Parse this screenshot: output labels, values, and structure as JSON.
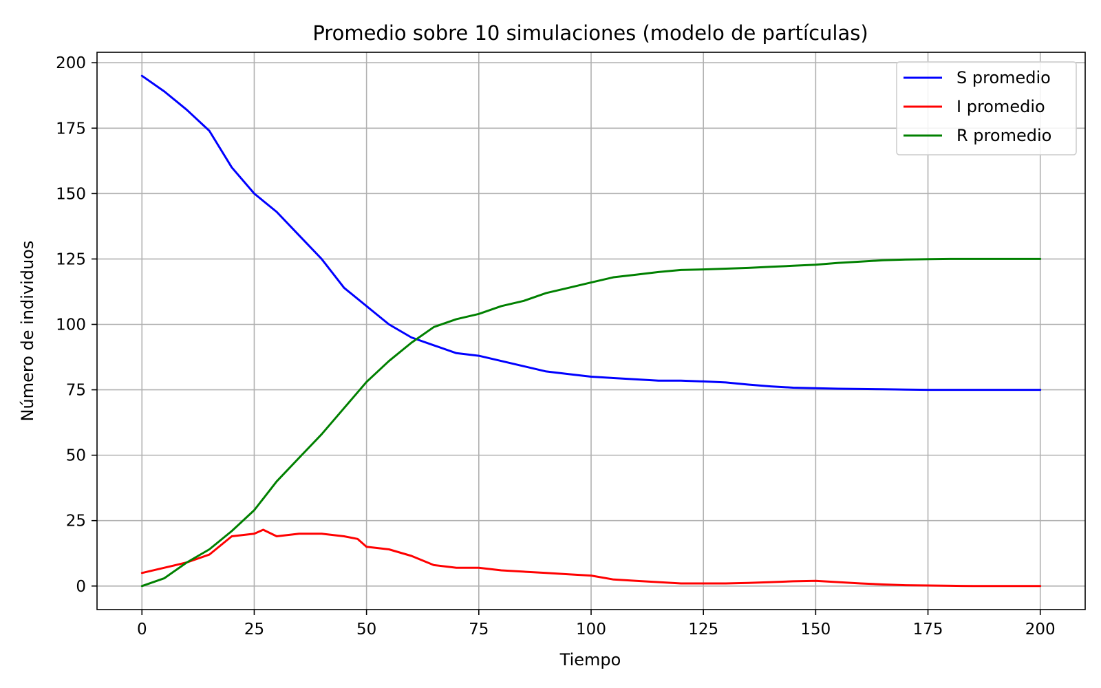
{
  "chart_data": {
    "type": "line",
    "title": "Promedio sobre 10 simulaciones (modelo de partículas)",
    "xlabel": "Tiempo",
    "ylabel": "Número de individuos",
    "xlim": [
      -10,
      210
    ],
    "ylim": [
      -9,
      204
    ],
    "x_ticks": [
      0,
      25,
      50,
      75,
      100,
      125,
      150,
      175,
      200
    ],
    "y_ticks": [
      0,
      25,
      50,
      75,
      100,
      125,
      150,
      175,
      200
    ],
    "grid": true,
    "legend_position": "top-right",
    "series": [
      {
        "name": "S promedio",
        "color": "#0000ff",
        "x": [
          0,
          5,
          10,
          15,
          20,
          25,
          30,
          35,
          40,
          45,
          50,
          55,
          60,
          65,
          70,
          75,
          80,
          85,
          90,
          95,
          100,
          105,
          110,
          115,
          120,
          125,
          130,
          135,
          140,
          145,
          150,
          155,
          160,
          165,
          170,
          175,
          180,
          185,
          190,
          195,
          200
        ],
        "values": [
          195,
          189,
          182,
          174,
          160,
          150,
          143,
          134,
          125,
          114,
          107,
          100,
          95,
          92,
          89,
          88,
          86,
          84,
          82,
          81,
          80,
          79.5,
          79,
          78.5,
          78.5,
          78.2,
          77.8,
          77,
          76.3,
          75.8,
          75.6,
          75.4,
          75.3,
          75.2,
          75.1,
          75,
          75,
          75,
          75,
          75,
          75
        ]
      },
      {
        "name": "I promedio",
        "color": "#ff0000",
        "x": [
          0,
          5,
          10,
          15,
          20,
          25,
          27,
          30,
          35,
          40,
          45,
          48,
          50,
          55,
          60,
          65,
          70,
          75,
          80,
          85,
          90,
          95,
          100,
          105,
          110,
          115,
          120,
          125,
          130,
          135,
          140,
          145,
          150,
          155,
          160,
          165,
          170,
          175,
          180,
          185,
          190,
          195,
          200
        ],
        "values": [
          5,
          7,
          9,
          12,
          19,
          20,
          21.5,
          19,
          20,
          20,
          19,
          18,
          15,
          14,
          11.5,
          8,
          7,
          7,
          6,
          5.5,
          5,
          4.5,
          4,
          2.5,
          2,
          1.5,
          1,
          1,
          1,
          1.2,
          1.5,
          1.8,
          2,
          1.5,
          1,
          0.6,
          0.3,
          0.2,
          0.1,
          0,
          0,
          0,
          0
        ]
      },
      {
        "name": "R promedio",
        "color": "#008000",
        "x": [
          0,
          5,
          10,
          15,
          20,
          25,
          30,
          35,
          40,
          45,
          50,
          55,
          60,
          65,
          70,
          75,
          80,
          85,
          90,
          95,
          100,
          105,
          110,
          115,
          120,
          125,
          130,
          135,
          140,
          145,
          150,
          155,
          160,
          165,
          170,
          175,
          180,
          185,
          190,
          195,
          200
        ],
        "values": [
          0,
          3,
          9,
          14,
          21,
          29,
          40,
          49,
          58,
          68,
          78,
          86,
          93,
          99,
          102,
          104,
          107,
          109,
          112,
          114,
          116,
          118,
          119,
          120,
          120.8,
          121,
          121.3,
          121.6,
          122,
          122.4,
          122.8,
          123.5,
          124,
          124.5,
          124.8,
          124.9,
          125,
          125,
          125,
          125,
          125
        ]
      }
    ]
  }
}
